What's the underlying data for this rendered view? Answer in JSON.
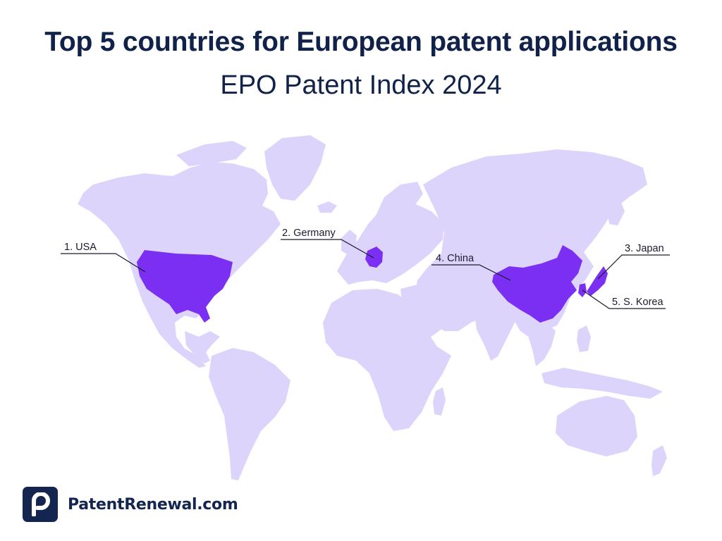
{
  "header": {
    "title": "Top 5 countries for European patent applications",
    "subtitle": "EPO Patent Index 2024"
  },
  "map": {
    "land_color": "#ddd4fb",
    "highlight_color": "#7a2ff2",
    "countries": [
      {
        "rank": 1,
        "label": "1. USA"
      },
      {
        "rank": 2,
        "label": "2. Germany"
      },
      {
        "rank": 3,
        "label": "3. Japan"
      },
      {
        "rank": 4,
        "label": "4. China"
      },
      {
        "rank": 5,
        "label": "5. S. Korea"
      }
    ]
  },
  "brand": {
    "logo_icon": "p-logo-icon",
    "name": "PatentRenewal.com"
  }
}
